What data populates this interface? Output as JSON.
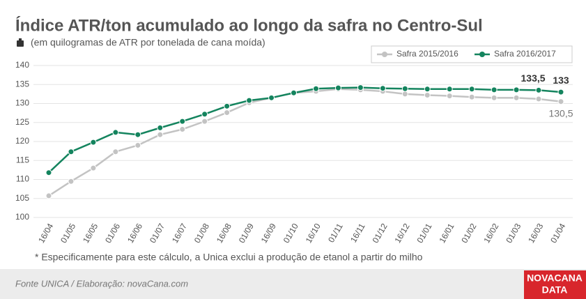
{
  "chart_data": {
    "type": "line",
    "title": "Índice ATR/ton acumulado ao longo da safra no Centro-Sul",
    "subtitle": "(em quilogramas de ATR por tonelada de cana moída)",
    "footnote": "* Especificamente para este cálculo, a Unica exclui a produção de etanol a partir do milho",
    "source": "Fonte UNICA / Elaboração: novaCana.com",
    "logo": [
      "NOVACANA",
      "DATA"
    ],
    "categories": [
      "16/04",
      "01/05",
      "16/05",
      "01/06",
      "16/06",
      "01/07",
      "16/07",
      "01/08",
      "16/08",
      "01/09",
      "16/09",
      "01/10",
      "16/10",
      "01/11",
      "16/11",
      "01/12",
      "16/12",
      "01/01",
      "16/01",
      "01/02",
      "16/02",
      "01/03",
      "16/03",
      "01/04"
    ],
    "series": [
      {
        "name": "Safra 2015/2016",
        "color": "#c3c3c3",
        "values": [
          105.7,
          109.5,
          113,
          117.3,
          119,
          121.8,
          123.2,
          125.3,
          127.6,
          130.2,
          131.5,
          132.8,
          133.2,
          133.8,
          133.6,
          133.2,
          132.5,
          132.2,
          132,
          131.7,
          131.5,
          131.5,
          131.2,
          130.5
        ],
        "value_labels": [
          null,
          null,
          null,
          null,
          null,
          null,
          null,
          null,
          null,
          null,
          null,
          null,
          null,
          null,
          null,
          null,
          null,
          null,
          null,
          null,
          null,
          null,
          null,
          "130,5"
        ]
      },
      {
        "name": "Safra 2016/2017",
        "color": "#14845e",
        "values": [
          111.8,
          117.3,
          119.8,
          122.4,
          121.8,
          123.6,
          125.3,
          127.2,
          129.3,
          130.8,
          131.5,
          132.8,
          133.9,
          134.1,
          134.2,
          134,
          133.9,
          133.8,
          133.8,
          133.8,
          133.6,
          133.6,
          133.5,
          133
        ],
        "value_labels": [
          null,
          null,
          null,
          null,
          null,
          null,
          null,
          null,
          null,
          null,
          null,
          null,
          null,
          null,
          null,
          null,
          null,
          null,
          null,
          null,
          null,
          null,
          "133,5",
          "133"
        ]
      }
    ],
    "ylim": [
      100,
      140
    ],
    "yticks": [
      100,
      105,
      110,
      115,
      120,
      125,
      130,
      135,
      140
    ],
    "grid": true,
    "legend": "top-right"
  }
}
